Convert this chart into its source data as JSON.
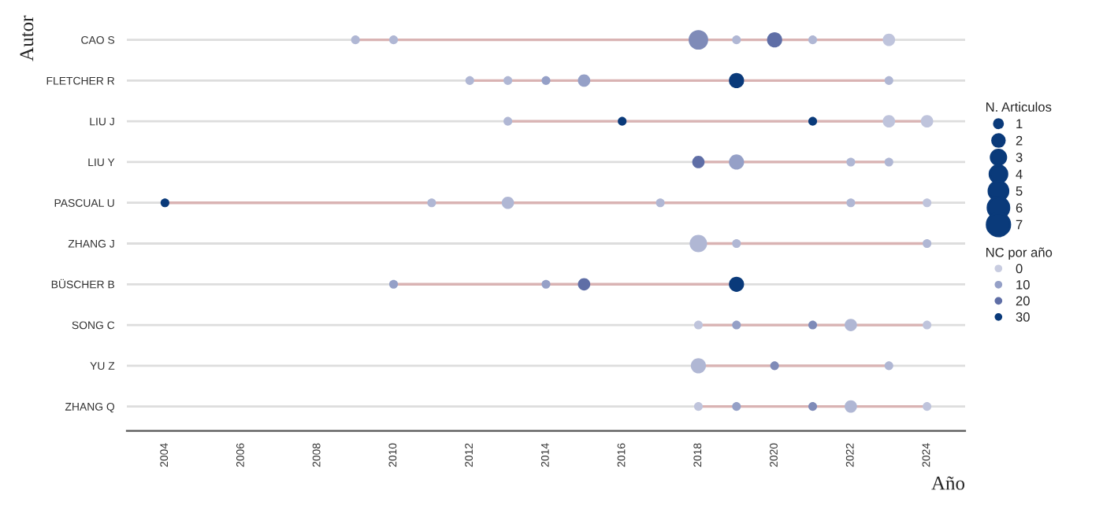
{
  "chart_data": {
    "type": "bubble",
    "orientation": "horizontal",
    "xlabel": "Año",
    "ylabel": "Autor",
    "legend_title": "N. Articulos",
    "clabel": "NC por año",
    "categories": [
      "CAO S",
      "FLETCHER R",
      "LIU J",
      "LIU Y",
      "PASCUAL U",
      "ZHANG J",
      "BÜSCHER B",
      "SONG C",
      "YU Z",
      "ZHANG Q"
    ],
    "xlim": [
      2003,
      2025
    ],
    "xticks": [
      2004,
      2006,
      2008,
      2010,
      2012,
      2014,
      2016,
      2018,
      2020,
      2022,
      2024
    ],
    "size_legend": [
      1,
      2,
      3,
      4,
      5,
      6,
      7
    ],
    "grid": "y",
    "legend": "right",
    "series": [
      {
        "values": [
          2009,
          2012,
          2013,
          2018,
          2004,
          2018,
          2010,
          2018,
          2018,
          2018
        ],
        "sizes": [
          1,
          1,
          1,
          2,
          1,
          4,
          1,
          1,
          3,
          1
        ],
        "colors": [
          "#b0b7d4",
          "#b0b7d4",
          "#b0b7d4",
          "#5f6ea6",
          "#0a3a7a",
          "#b0b7d4",
          "#95a0c7",
          "#bfc4dc",
          "#b0b7d4",
          "#bfc4dc"
        ]
      },
      {
        "values": [
          2010,
          2013,
          2016,
          2019,
          2011,
          2019,
          2014,
          2019,
          2020,
          2019
        ],
        "sizes": [
          1,
          1,
          1,
          3,
          1,
          1,
          1,
          1,
          1,
          1
        ],
        "colors": [
          "#b0b7d4",
          "#b0b7d4",
          "#0a3a7a",
          "#95a0c7",
          "#b0b7d4",
          "#b0b7d4",
          "#95a0c7",
          "#95a0c7",
          "#7f8bb8",
          "#95a0c7"
        ]
      },
      {
        "values": [
          2018,
          2014,
          2021,
          2022,
          2013,
          2024,
          2015,
          2021,
          2023,
          2021
        ],
        "sizes": [
          5,
          1,
          1,
          1,
          2,
          1,
          2,
          1,
          1,
          1
        ],
        "colors": [
          "#7f8bb8",
          "#95a0c7",
          "#0a3a7a",
          "#b0b7d4",
          "#b0b7d4",
          "#b0b7d4",
          "#5f6ea6",
          "#7f8bb8",
          "#b0b7d4",
          "#7f8bb8"
        ]
      },
      {
        "values": [
          2019,
          2015,
          2023,
          2023,
          2017,
          null,
          2019,
          2022,
          null,
          2022
        ],
        "sizes": [
          1,
          2,
          2,
          1,
          1,
          null,
          3,
          2,
          null,
          2
        ],
        "colors": [
          "#b0b7d4",
          "#95a0c7",
          "#bfc4dc",
          "#b0b7d4",
          "#b0b7d4",
          null,
          "#0a3a7a",
          "#b0b7d4",
          null,
          "#b0b7d4"
        ]
      },
      {
        "values": [
          2020,
          2019,
          2024,
          null,
          2022,
          null,
          null,
          2024,
          null,
          2024
        ],
        "sizes": [
          3,
          3,
          2,
          null,
          1,
          null,
          null,
          1,
          null,
          1
        ],
        "colors": [
          "#5f6ea6",
          "#0a3a7a",
          "#bfc4dc",
          null,
          "#b0b7d4",
          null,
          null,
          "#bfc4dc",
          null,
          "#bfc4dc"
        ]
      },
      {
        "values": [
          2021,
          2023,
          null,
          null,
          2024,
          null,
          null,
          null,
          null,
          null
        ],
        "sizes": [
          1,
          1,
          null,
          null,
          1,
          null,
          null,
          null,
          null,
          null
        ],
        "colors": [
          "#b0b7d4",
          "#b0b7d4",
          null,
          null,
          "#bfc4dc",
          null,
          null,
          null,
          null,
          null
        ]
      },
      {
        "values": [
          2023,
          null,
          null,
          null,
          null,
          null,
          null,
          null,
          null,
          null
        ],
        "sizes": [
          2,
          null,
          null,
          null,
          null,
          null,
          null,
          null,
          null,
          null
        ],
        "colors": [
          "#bfc4dc",
          null,
          null,
          null,
          null,
          null,
          null,
          null,
          null,
          null
        ]
      },
      {
        "name": "0",
        "color": "#c8cce0",
        "values": [
          null,
          null,
          null,
          null,
          null,
          null,
          null,
          null,
          null,
          null
        ]
      },
      {
        "name": "10",
        "color": "#95a0c7",
        "values": [
          null,
          null,
          null,
          null,
          null,
          null,
          null,
          null,
          null,
          null
        ]
      },
      {
        "name": "20",
        "color": "#5f6ea6",
        "values": [
          null,
          null,
          null,
          null,
          null,
          null,
          null,
          null,
          null,
          null
        ]
      },
      {
        "name": "30",
        "color": "#0a3a7a",
        "values": [
          null,
          null,
          null,
          null,
          null,
          null,
          null,
          null,
          null,
          null
        ]
      }
    ]
  }
}
